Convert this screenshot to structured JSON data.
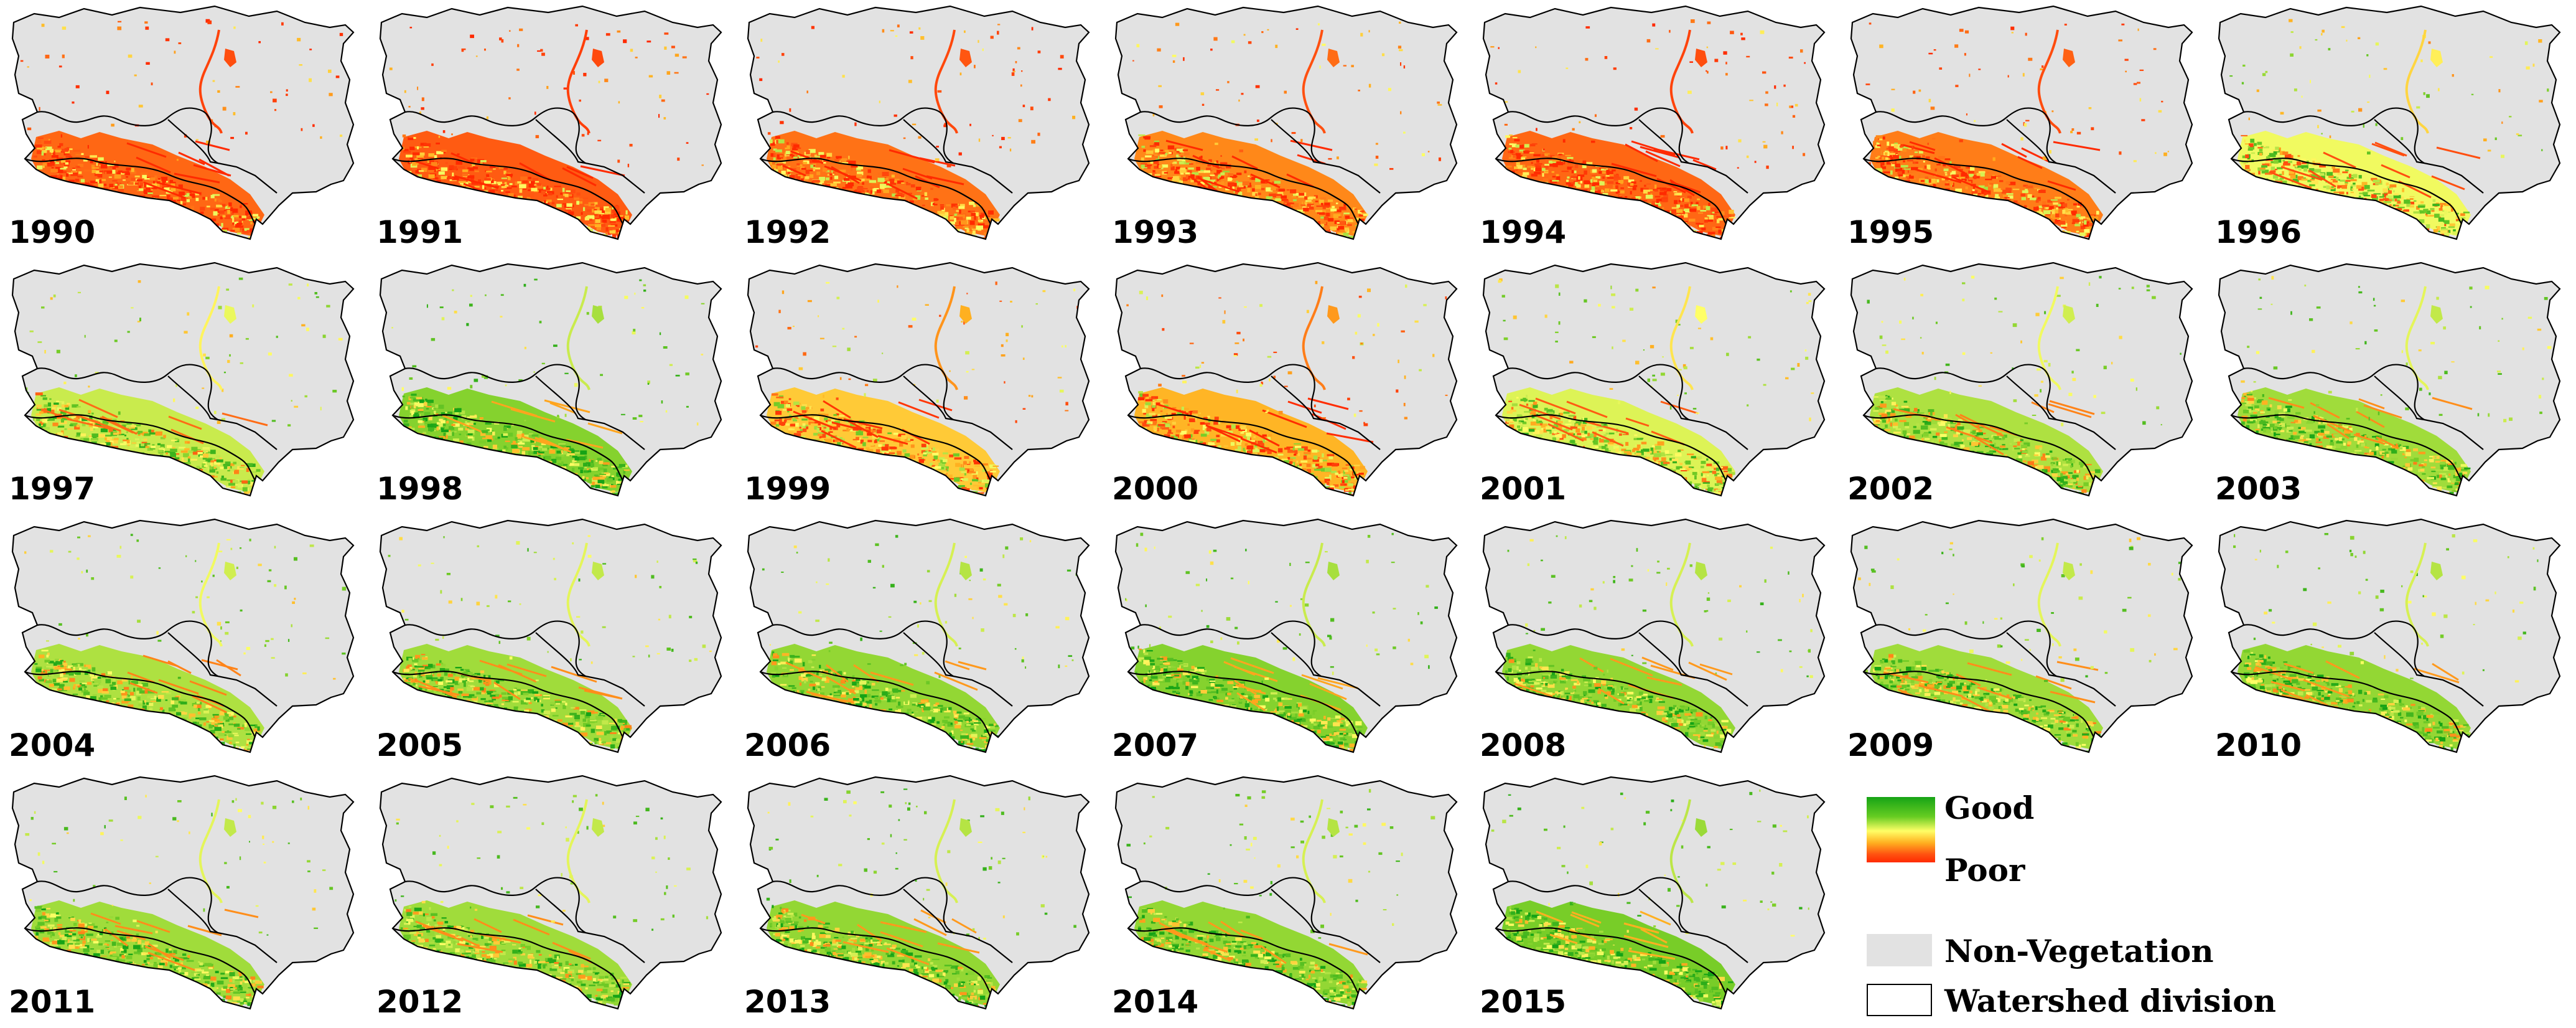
{
  "panels": [
    {
      "year": "1990",
      "condition": 0.22
    },
    {
      "year": "1991",
      "condition": 0.2
    },
    {
      "year": "1992",
      "condition": 0.24
    },
    {
      "year": "1993",
      "condition": 0.28
    },
    {
      "year": "1994",
      "condition": 0.22
    },
    {
      "year": "1995",
      "condition": 0.26
    },
    {
      "year": "1996",
      "condition": 0.52
    },
    {
      "year": "1997",
      "condition": 0.58
    },
    {
      "year": "1998",
      "condition": 0.68
    },
    {
      "year": "1999",
      "condition": 0.4
    },
    {
      "year": "2000",
      "condition": 0.36
    },
    {
      "year": "2001",
      "condition": 0.55
    },
    {
      "year": "2002",
      "condition": 0.62
    },
    {
      "year": "2003",
      "condition": 0.64
    },
    {
      "year": "2004",
      "condition": 0.62
    },
    {
      "year": "2005",
      "condition": 0.64
    },
    {
      "year": "2006",
      "condition": 0.66
    },
    {
      "year": "2007",
      "condition": 0.68
    },
    {
      "year": "2008",
      "condition": 0.66
    },
    {
      "year": "2009",
      "condition": 0.64
    },
    {
      "year": "2010",
      "condition": 0.66
    },
    {
      "year": "2011",
      "condition": 0.64
    },
    {
      "year": "2012",
      "condition": 0.64
    },
    {
      "year": "2013",
      "condition": 0.66
    },
    {
      "year": "2014",
      "condition": 0.66
    },
    {
      "year": "2015",
      "condition": 0.7
    }
  ],
  "legend": {
    "good_label": "Good",
    "poor_label": "Poor",
    "nonveg_label": "Non-Vegetation",
    "watershed_label": "Watershed division"
  },
  "colors": {
    "non_vegetation": "#e2e2e2",
    "good": "#16a316",
    "mid": "#ffff66",
    "poor": "#ff2a00",
    "watershed_line": "#000000"
  }
}
